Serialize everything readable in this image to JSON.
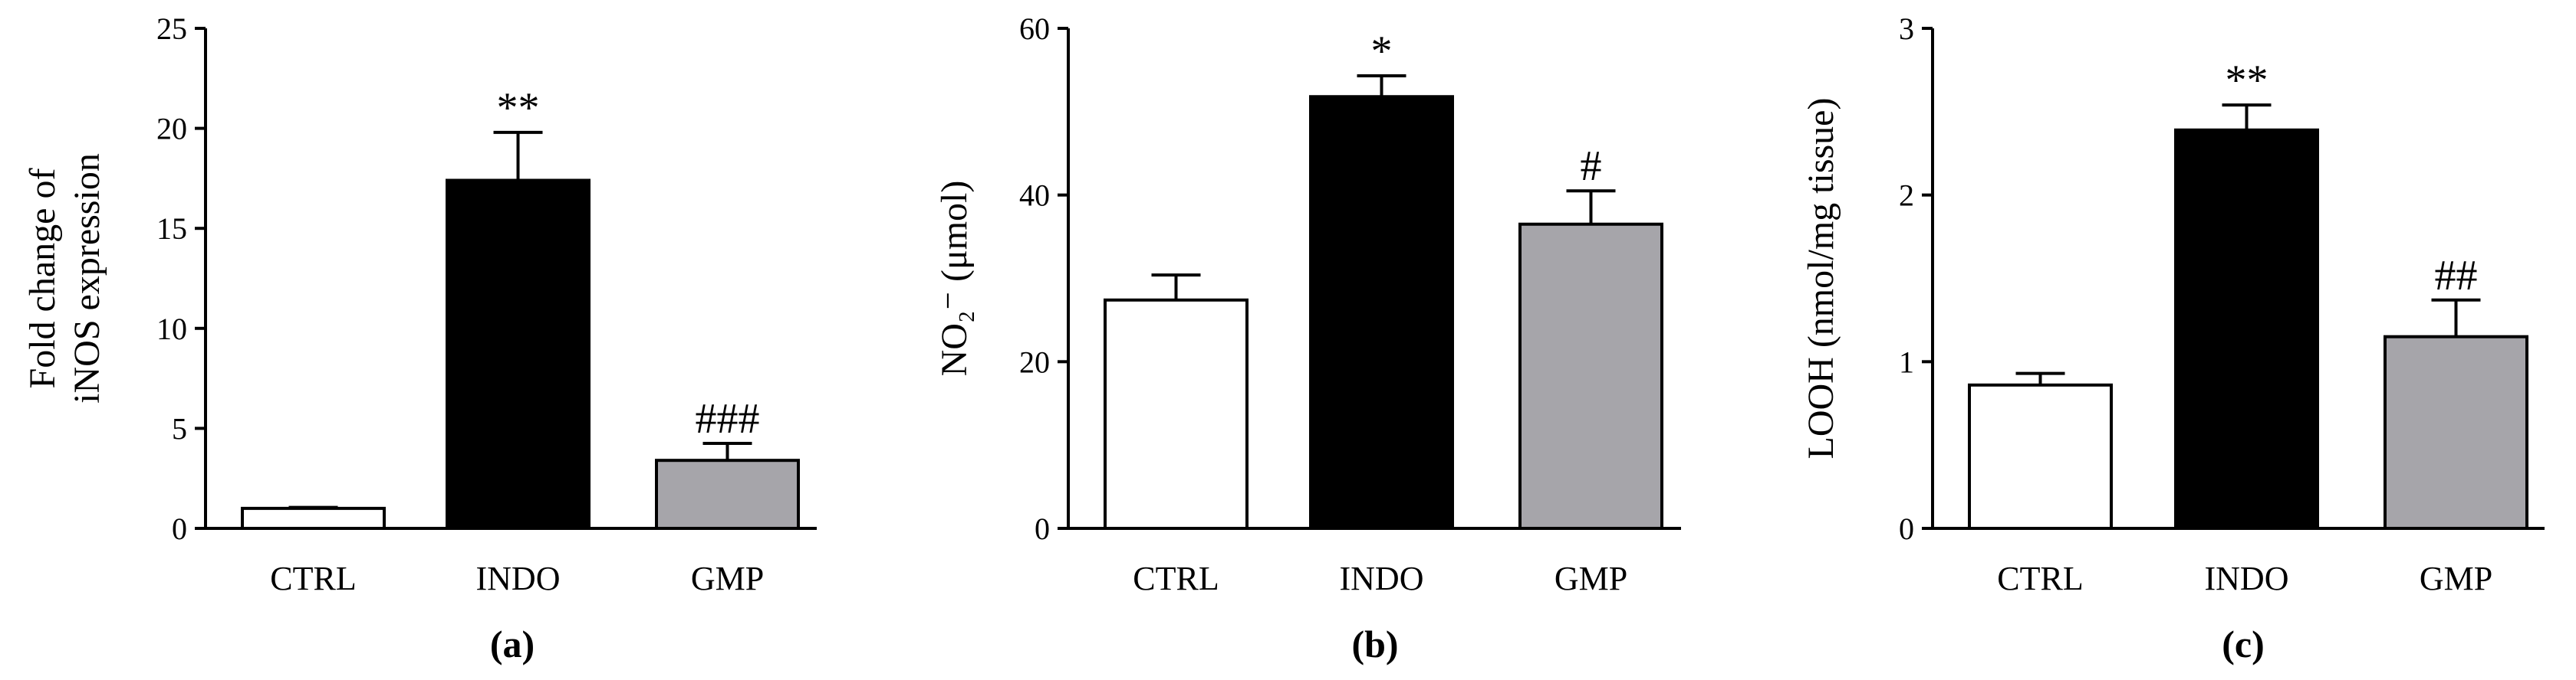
{
  "chart_data": [
    {
      "type": "bar",
      "panel_label": "(a)",
      "categories": [
        "CTRL",
        "INDO",
        "GMP"
      ],
      "values": [
        1.0,
        17.4,
        3.4
      ],
      "errors": [
        0.05,
        2.4,
        0.85
      ],
      "bar_colors": [
        "#ffffff",
        "#000000",
        "#a6a5aa"
      ],
      "significance": [
        "",
        "**",
        "###"
      ],
      "ylabel_lines": [
        "Fold change of",
        "iNOS expression"
      ],
      "ylim": [
        0,
        25
      ],
      "yticks": [
        0,
        5,
        10,
        15,
        20,
        25
      ]
    },
    {
      "type": "bar",
      "panel_label": "(b)",
      "categories": [
        "CTRL",
        "INDO",
        "GMP"
      ],
      "values": [
        27.4,
        51.8,
        36.5
      ],
      "errors": [
        3.0,
        2.5,
        4.0
      ],
      "bar_colors": [
        "#ffffff",
        "#000000",
        "#a6a5aa"
      ],
      "significance": [
        "",
        "*",
        "#"
      ],
      "ylabel_lines": [
        "NO₂⁻ (μmol)"
      ],
      "ylim": [
        0,
        60
      ],
      "yticks": [
        0,
        20,
        40,
        60
      ]
    },
    {
      "type": "bar",
      "panel_label": "(c)",
      "categories": [
        "CTRL",
        "INDO",
        "GMP"
      ],
      "values": [
        0.86,
        2.39,
        1.15
      ],
      "errors": [
        0.07,
        0.15,
        0.22
      ],
      "bar_colors": [
        "#ffffff",
        "#000000",
        "#a6a5aa"
      ],
      "significance": [
        "",
        "**",
        "##"
      ],
      "ylabel_lines": [
        "LOOH (nmol/mg tissue)"
      ],
      "ylim": [
        0,
        3
      ],
      "yticks": [
        0,
        1,
        2,
        3
      ]
    }
  ]
}
